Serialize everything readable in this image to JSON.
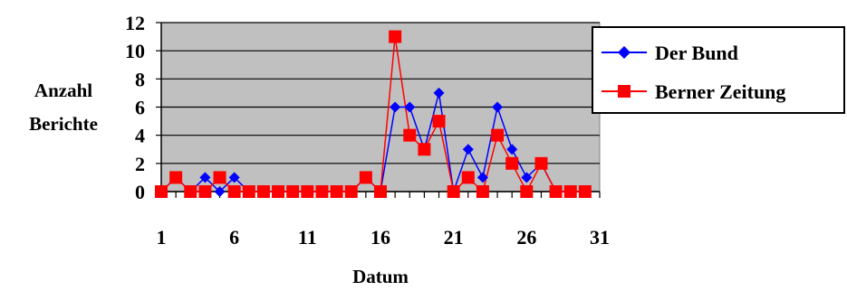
{
  "chart_data": {
    "type": "line",
    "title": "",
    "xlabel": "Datum",
    "ylabel_lines": [
      "Anzahl",
      "Berichte"
    ],
    "xlim": [
      1,
      31
    ],
    "ylim": [
      0,
      12
    ],
    "x_ticks": [
      "1",
      "6",
      "11",
      "16",
      "21",
      "26",
      "31"
    ],
    "y_ticks": [
      "0",
      "2",
      "4",
      "6",
      "8",
      "10",
      "12"
    ],
    "grid": true,
    "plot_background": "#c0c0c0",
    "legend_position": "right",
    "x": [
      1,
      2,
      3,
      4,
      5,
      6,
      7,
      8,
      9,
      10,
      11,
      12,
      13,
      14,
      15,
      16,
      17,
      18,
      19,
      20,
      21,
      22,
      23,
      24,
      25,
      26,
      27,
      28,
      29,
      30
    ],
    "series": [
      {
        "name": "Der Bund",
        "color": "#0000ff",
        "marker": "diamond",
        "values": [
          0,
          1,
          0,
          1,
          0,
          1,
          0,
          0,
          0,
          0,
          0,
          0,
          0,
          0,
          1,
          0,
          6,
          6,
          3,
          7,
          0,
          3,
          1,
          6,
          3,
          1,
          2,
          0,
          0,
          0
        ]
      },
      {
        "name": "Berner Zeitung",
        "color": "#ff0000",
        "marker": "square",
        "values": [
          0,
          1,
          0,
          0,
          1,
          0,
          0,
          0,
          0,
          0,
          0,
          0,
          0,
          0,
          1,
          0,
          11,
          4,
          3,
          5,
          0,
          1,
          0,
          4,
          2,
          0,
          2,
          0,
          0,
          0
        ]
      }
    ]
  }
}
